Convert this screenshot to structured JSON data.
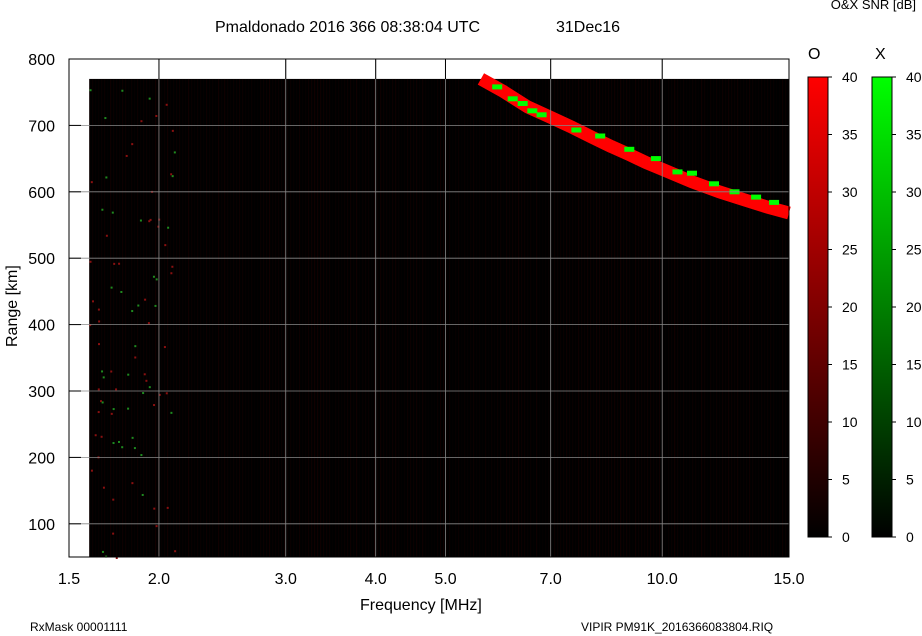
{
  "header": {
    "title": "Pmaldonado 2016 366 08:38:04 UTC",
    "date": "31Dec16",
    "colorbar_title": "O&X SNR [dB]",
    "o_label": "O",
    "x_label": "X"
  },
  "footer": {
    "left": "RxMask 00001111",
    "right": "VIPIR  PM91K_2016366083804.RIQ"
  },
  "colors": {
    "background": "#000000",
    "o_mode": "#ff0000",
    "x_mode": "#00ff00",
    "grid": "#888888"
  },
  "chart_data": {
    "type": "heatmap",
    "xlabel": "Frequency [MHz]",
    "ylabel": "Range [km]",
    "xscale": "log",
    "xlim": [
      1.5,
      15.0
    ],
    "ylim": [
      50,
      800
    ],
    "data_xrange": [
      1.6,
      15.0
    ],
    "data_yrange": [
      50,
      770
    ],
    "x_ticks": [
      "1.5",
      "2.0",
      "3.0",
      "4.0",
      "5.0",
      "7.0",
      "10.0",
      "15.0"
    ],
    "x_tick_values": [
      1.5,
      2.0,
      3.0,
      4.0,
      5.0,
      7.0,
      10.0,
      15.0
    ],
    "y_ticks": [
      "100",
      "200",
      "300",
      "400",
      "500",
      "600",
      "700",
      "800"
    ],
    "y_tick_values": [
      100,
      200,
      300,
      400,
      500,
      600,
      700,
      800
    ],
    "grid": true,
    "colorbars": [
      {
        "name": "O",
        "range": [
          0,
          40
        ],
        "ticks": [
          "0",
          "5",
          "10",
          "15",
          "20",
          "25",
          "30",
          "35",
          "40"
        ],
        "color": "#ff0000"
      },
      {
        "name": "X",
        "range": [
          0,
          40
        ],
        "ticks": [
          "0",
          "5",
          "10",
          "15",
          "20",
          "25",
          "30",
          "35",
          "40"
        ],
        "color": "#00ff00"
      }
    ],
    "echo_trace": {
      "mode": "O",
      "snr_db": 40,
      "points": [
        {
          "freq": 5.6,
          "range": 770
        },
        {
          "freq": 6.0,
          "range": 752
        },
        {
          "freq": 6.5,
          "range": 728
        },
        {
          "freq": 7.0,
          "range": 712
        },
        {
          "freq": 7.5,
          "range": 697
        },
        {
          "freq": 8.0,
          "range": 682
        },
        {
          "freq": 8.5,
          "range": 668
        },
        {
          "freq": 9.0,
          "range": 656
        },
        {
          "freq": 9.5,
          "range": 644
        },
        {
          "freq": 10.0,
          "range": 634
        },
        {
          "freq": 11.0,
          "range": 615
        },
        {
          "freq": 12.0,
          "range": 600
        },
        {
          "freq": 13.0,
          "range": 588
        },
        {
          "freq": 14.0,
          "range": 577
        },
        {
          "freq": 15.0,
          "range": 568
        }
      ]
    },
    "x_mode_points": [
      {
        "freq": 5.9,
        "range": 758
      },
      {
        "freq": 6.2,
        "range": 740
      },
      {
        "freq": 6.4,
        "range": 733
      },
      {
        "freq": 6.6,
        "range": 722
      },
      {
        "freq": 6.8,
        "range": 716
      },
      {
        "freq": 7.6,
        "range": 693
      },
      {
        "freq": 8.2,
        "range": 684
      },
      {
        "freq": 9.0,
        "range": 664
      },
      {
        "freq": 9.8,
        "range": 650
      },
      {
        "freq": 10.5,
        "range": 630
      },
      {
        "freq": 11.0,
        "range": 628
      },
      {
        "freq": 11.8,
        "range": 612
      },
      {
        "freq": 12.6,
        "range": 600
      },
      {
        "freq": 13.5,
        "range": 592
      },
      {
        "freq": 14.3,
        "range": 584
      }
    ]
  }
}
